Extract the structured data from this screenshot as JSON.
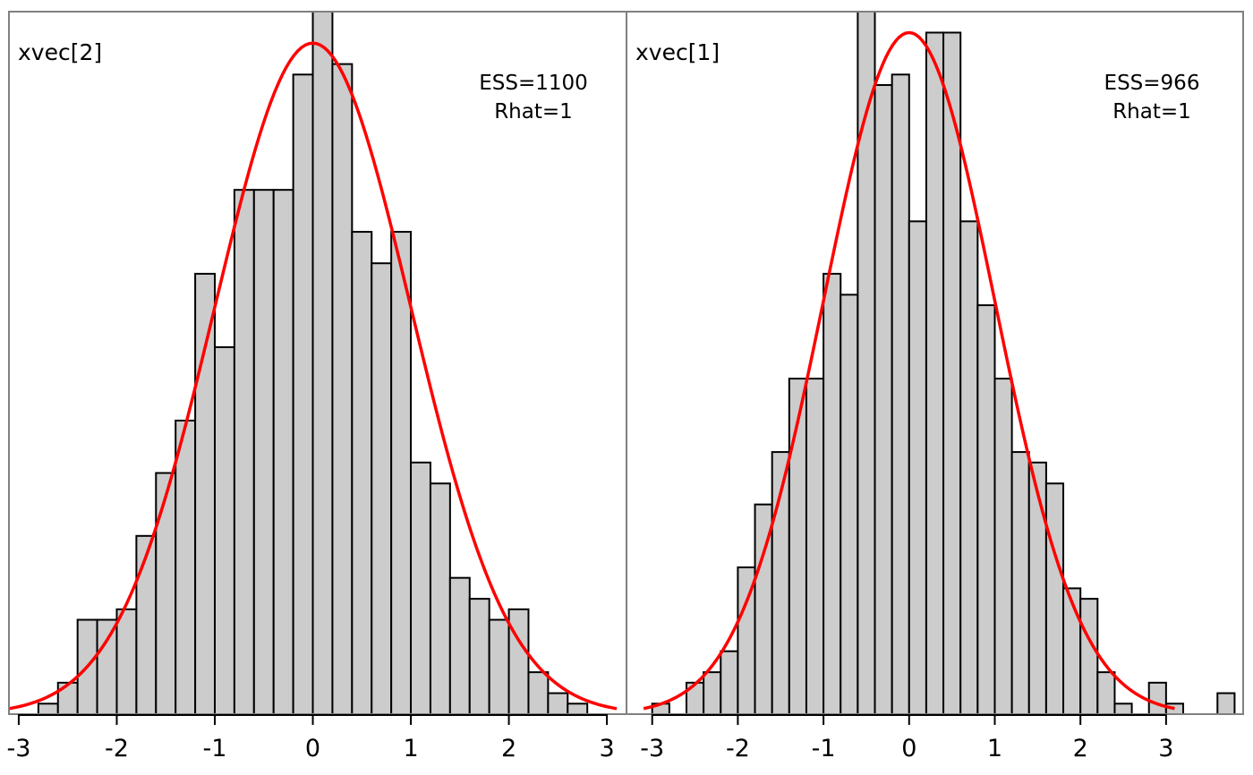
{
  "chart_data": [
    {
      "type": "bar",
      "title": "xvec[2]",
      "ess_label": "ESS=1100",
      "rhat_label": "Rhat=1",
      "xlim": [
        -3.1,
        3.2
      ],
      "ylim": [
        0,
        67
      ],
      "ticks": [
        -3,
        -2,
        -1,
        0,
        1,
        2,
        3
      ],
      "tick_labels": [
        "-3",
        "-2",
        "-1",
        "0",
        "1",
        "2",
        "3"
      ],
      "bin_start": -2.8,
      "bin_width": 0.2,
      "counts": [
        1,
        3,
        9,
        9,
        10,
        17,
        23,
        28,
        42,
        35,
        50,
        50,
        50,
        61,
        67,
        62,
        46,
        43,
        46,
        24,
        22,
        13,
        11,
        9,
        10,
        4,
        2,
        1
      ],
      "density_color": "#ff0000",
      "density_mean": 0,
      "density_sd": 1,
      "density_peak": 64,
      "density_range": [
        -3.1,
        3.1
      ]
    },
    {
      "type": "bar",
      "title": "xvec[1]",
      "ess_label": "ESS=966",
      "rhat_label": "Rhat=1",
      "xlim": [
        -3.3,
        3.9
      ],
      "ylim": [
        0,
        67
      ],
      "ticks": [
        -3,
        -2,
        -1,
        0,
        1,
        2,
        3
      ],
      "tick_labels": [
        "-3",
        "-2",
        "-1",
        "0",
        "1",
        "2",
        "3"
      ],
      "bin_start": -3.0,
      "bin_width": 0.2,
      "counts": [
        1,
        0,
        3,
        4,
        6,
        14,
        20,
        25,
        32,
        32,
        42,
        40,
        67,
        60,
        61,
        47,
        65,
        65,
        47,
        39,
        32,
        25,
        24,
        22,
        12,
        11,
        4,
        1,
        0,
        3,
        1,
        0,
        0,
        2
      ],
      "density_color": "#ff0000",
      "density_mean": 0,
      "density_sd": 1,
      "density_peak": 65,
      "density_range": [
        -3.1,
        3.1
      ]
    }
  ]
}
